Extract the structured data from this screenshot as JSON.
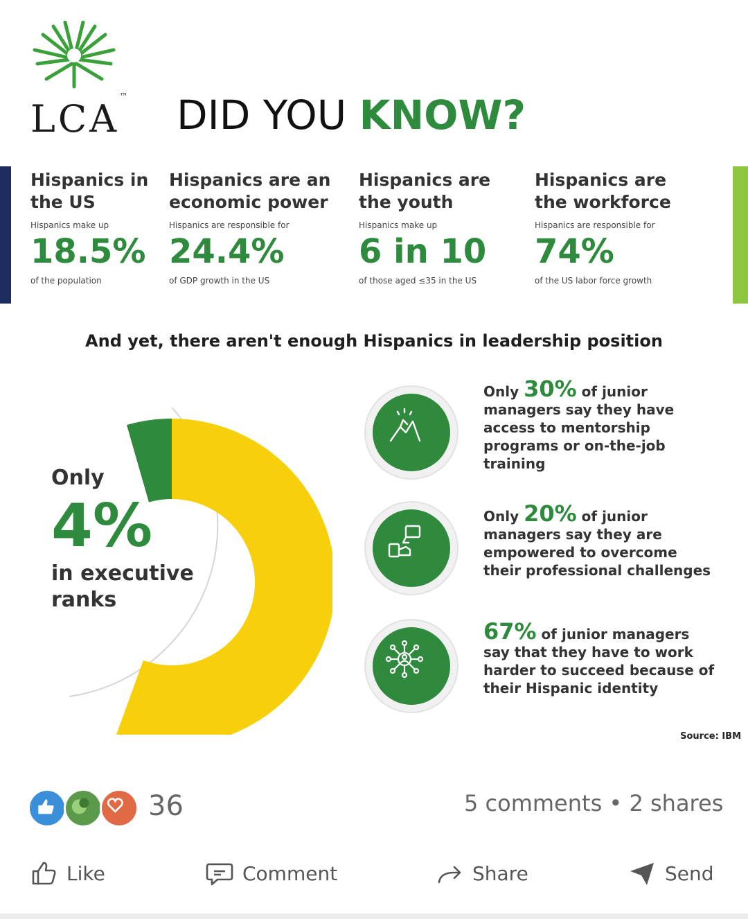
{
  "header": {
    "logo_text": "LCA",
    "logo_tm": "™",
    "headline_plain": "DID YOU ",
    "headline_accent": "KNOW?"
  },
  "stats": [
    {
      "heading": "Hispanics in the US",
      "prefix": "Hispanics make up",
      "value": "18.5%",
      "suffix": "of the population"
    },
    {
      "heading": "Hispanics are an economic power",
      "prefix": "Hispanics are responsible for",
      "value": "24.4%",
      "suffix": "of GDP growth in the US"
    },
    {
      "heading": "Hispanics are the youth",
      "prefix": "Hispanics make up",
      "value": "6 in 10",
      "suffix": "of those aged ≤35 in the US"
    },
    {
      "heading": "Hispanics are the workforce",
      "prefix": "Hispanics are responsible for",
      "value": "74%",
      "suffix": "of the US labor force growth"
    }
  ],
  "subhead": "And yet, there aren't enough Hispanics in leadership position",
  "executive": {
    "only": "Only",
    "value": "4%",
    "tail": "in executive ranks",
    "share": 0.04,
    "colors": {
      "highlight": "#2e8b3e",
      "rest": "#f7cf0a"
    }
  },
  "facts": [
    {
      "icon": "mentorship-hands-icon",
      "pre": "Only ",
      "pct": "30%",
      "post": " of junior managers say they have access to mentorship programs or on-the-job training"
    },
    {
      "icon": "empowerment-hands-icon",
      "pre": "Only ",
      "pct": "20%",
      "post": " of junior managers say they are empowered to overcome their professional challenges"
    },
    {
      "icon": "network-people-icon",
      "pre": "",
      "pct": "67%",
      "post": " of junior managers say that they have to work harder to succeed because of their Hispanic identity"
    }
  ],
  "source": "Source: IBM",
  "social": {
    "reaction_icons": [
      "like-icon",
      "celebrate-icon",
      "love-icon"
    ],
    "reaction_count": "36",
    "engagement": "5 comments • 2 shares",
    "actions": {
      "like": "Like",
      "comment": "Comment",
      "share": "Share",
      "send": "Send"
    }
  },
  "colors": {
    "green": "#2e8b3e",
    "navy": "#1c2e5e",
    "lime": "#8cc63f",
    "yellow": "#f7cf0a"
  }
}
